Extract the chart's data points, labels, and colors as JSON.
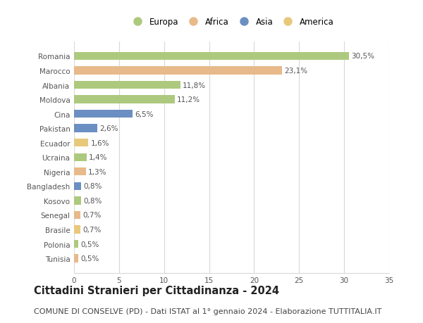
{
  "countries": [
    "Romania",
    "Marocco",
    "Albania",
    "Moldova",
    "Cina",
    "Pakistan",
    "Ecuador",
    "Ucraina",
    "Nigeria",
    "Bangladesh",
    "Kosovo",
    "Senegal",
    "Brasile",
    "Polonia",
    "Tunisia"
  ],
  "values": [
    30.5,
    23.1,
    11.8,
    11.2,
    6.5,
    2.6,
    1.6,
    1.4,
    1.3,
    0.8,
    0.8,
    0.7,
    0.7,
    0.5,
    0.5
  ],
  "labels": [
    "30,5%",
    "23,1%",
    "11,8%",
    "11,2%",
    "6,5%",
    "2,6%",
    "1,6%",
    "1,4%",
    "1,3%",
    "0,8%",
    "0,8%",
    "0,7%",
    "0,7%",
    "0,5%",
    "0,5%"
  ],
  "continents": [
    "Europa",
    "Africa",
    "Europa",
    "Europa",
    "Asia",
    "Asia",
    "America",
    "Europa",
    "Africa",
    "Asia",
    "Europa",
    "Africa",
    "America",
    "Europa",
    "Africa"
  ],
  "continent_colors": {
    "Europa": "#adc97e",
    "Africa": "#e8b98a",
    "Asia": "#6b8fc2",
    "America": "#e8c87a"
  },
  "legend_order": [
    "Europa",
    "Africa",
    "Asia",
    "America"
  ],
  "xlim": [
    0,
    35
  ],
  "xticks": [
    0,
    5,
    10,
    15,
    20,
    25,
    30,
    35
  ],
  "title": "Cittadini Stranieri per Cittadinanza - 2024",
  "subtitle": "COMUNE DI CONSELVE (PD) - Dati ISTAT al 1° gennaio 2024 - Elaborazione TUTTITALIA.IT",
  "background_color": "#ffffff",
  "grid_color": "#d8d8d8",
  "bar_height": 0.55,
  "title_fontsize": 10.5,
  "subtitle_fontsize": 8,
  "label_fontsize": 7.5,
  "ytick_fontsize": 7.5,
  "xtick_fontsize": 7.5,
  "legend_fontsize": 8.5
}
